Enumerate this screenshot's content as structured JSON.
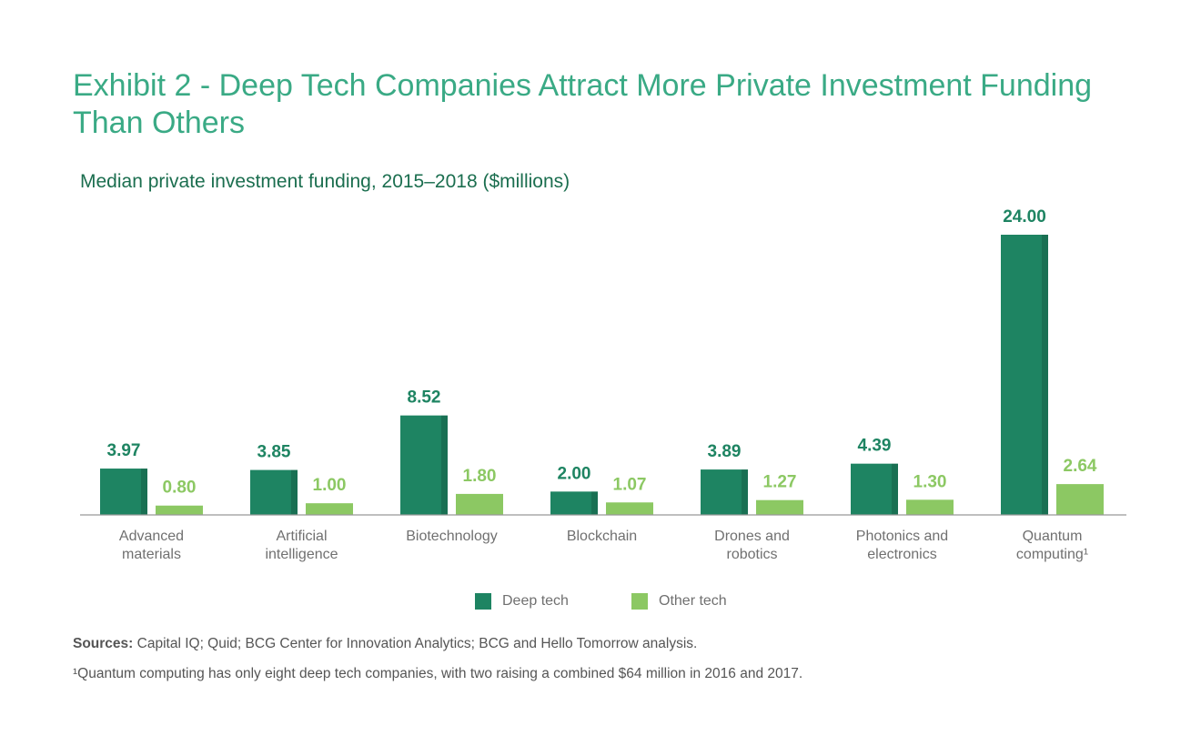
{
  "chart_data": {
    "type": "bar",
    "title": "Exhibit 2 - Deep Tech Companies Attract More Private Investment Funding Than Others",
    "subtitle": "Median private investment funding, 2015–2018 ($millions)",
    "categories": [
      "Advanced materials",
      "Artificial intelligence",
      "Biotechnology",
      "Blockchain",
      "Drones and robotics",
      "Photonics and electronics",
      "Quantum computing¹"
    ],
    "series": [
      {
        "name": "Deep tech",
        "color": "#1e8462",
        "values": [
          3.97,
          3.85,
          8.52,
          2.0,
          3.89,
          4.39,
          24.0
        ],
        "value_labels": [
          "3.97",
          "3.85",
          "8.52",
          "2.00",
          "3.89",
          "4.39",
          "24.00"
        ]
      },
      {
        "name": "Other tech",
        "color": "#8cc863",
        "values": [
          0.8,
          1.0,
          1.8,
          1.07,
          1.27,
          1.3,
          2.64
        ],
        "value_labels": [
          "0.80",
          "1.00",
          "1.80",
          "1.07",
          "1.27",
          "1.30",
          "2.64"
        ]
      }
    ],
    "legend": "bottom",
    "sources": {
      "label": "Sources:",
      "text": "Capital IQ; Quid; BCG Center for Innovation Analytics; BCG and Hello Tomorrow analysis."
    },
    "footnote": "¹Quantum computing has only eight deep tech companies, with two raising a combined $64 million in 2016 and 2017."
  }
}
